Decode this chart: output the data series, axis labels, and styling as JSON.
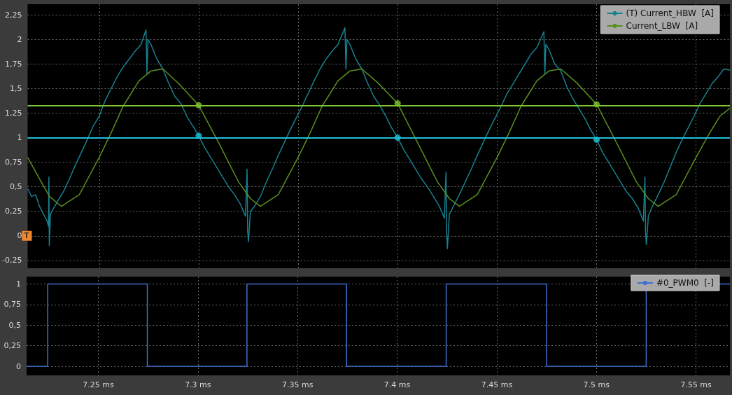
{
  "chart_data": [
    {
      "type": "line",
      "legend": "top right",
      "grid": true,
      "tick_labels": "y",
      "marker": "none",
      "annotations": [
        "T"
      ],
      "xlim": [
        7.214,
        7.567
      ],
      "ylim": [
        -0.33,
        2.36
      ],
      "xticks": [
        7.25,
        7.3,
        7.35,
        7.4,
        7.45,
        7.5,
        7.55
      ],
      "yticks": [
        {
          "value": -0.25,
          "label": "-0,25"
        },
        0,
        {
          "value": 0.25,
          "label": "0,25"
        },
        {
          "value": 0.5,
          "label": "0,5"
        },
        {
          "value": 0.75,
          "label": "0,75"
        },
        1,
        {
          "value": 1.25,
          "label": "1,25"
        },
        {
          "value": 1.5,
          "label": "1,5"
        },
        {
          "value": 1.75,
          "label": "1,75"
        },
        2,
        {
          "value": 2.25,
          "label": "2,25"
        }
      ],
      "ref_lines": [
        {
          "axis": "y",
          "value": 1.33,
          "color": "#7cc530"
        },
        {
          "axis": "y",
          "value": 1.0,
          "color": "#1fbfd5"
        }
      ],
      "series": [
        {
          "name": "(T) Current_HBW  [A]",
          "color": "#16808f",
          "x": [
            7.214,
            7.216,
            7.218,
            7.22,
            7.222,
            7.2238,
            7.2245,
            7.2247,
            7.2249,
            7.2255,
            7.227,
            7.229,
            7.232,
            7.235,
            7.238,
            7.241,
            7.244,
            7.247,
            7.25,
            7.253,
            7.256,
            7.259,
            7.262,
            7.265,
            7.268,
            7.271,
            7.2735,
            7.274,
            7.2745,
            7.276,
            7.279,
            7.282,
            7.285,
            7.288,
            7.291,
            7.294,
            7.297,
            7.3,
            7.303,
            7.306,
            7.309,
            7.312,
            7.315,
            7.318,
            7.321,
            7.3235,
            7.3243,
            7.3246,
            7.325,
            7.326,
            7.328,
            7.331,
            7.334,
            7.337,
            7.34,
            7.343,
            7.346,
            7.349,
            7.352,
            7.355,
            7.358,
            7.361,
            7.364,
            7.367,
            7.37,
            7.3735,
            7.374,
            7.3745,
            7.376,
            7.379,
            7.382,
            7.385,
            7.388,
            7.391,
            7.394,
            7.397,
            7.4,
            7.403,
            7.406,
            7.409,
            7.412,
            7.415,
            7.418,
            7.421,
            7.4235,
            7.4243,
            7.4246,
            7.425,
            7.426,
            7.428,
            7.431,
            7.434,
            7.437,
            7.44,
            7.443,
            7.446,
            7.449,
            7.452,
            7.455,
            7.458,
            7.461,
            7.464,
            7.467,
            7.47,
            7.4735,
            7.474,
            7.4745,
            7.476,
            7.479,
            7.482,
            7.485,
            7.488,
            7.491,
            7.494,
            7.497,
            7.5,
            7.503,
            7.506,
            7.509,
            7.512,
            7.515,
            7.518,
            7.521,
            7.5235,
            7.5243,
            7.5246,
            7.525,
            7.526,
            7.528,
            7.531,
            7.534,
            7.537,
            7.54,
            7.543,
            7.546,
            7.549,
            7.552,
            7.555,
            7.558,
            7.561,
            7.564,
            7.567
          ],
          "values": [
            0.48,
            0.4,
            0.42,
            0.3,
            0.22,
            0.15,
            0.1,
            0.6,
            -0.1,
            0.22,
            0.28,
            0.35,
            0.45,
            0.58,
            0.72,
            0.85,
            0.98,
            1.12,
            1.22,
            1.38,
            1.5,
            1.62,
            1.72,
            1.8,
            1.88,
            1.95,
            2.1,
            1.65,
            2.0,
            1.95,
            1.8,
            1.7,
            1.55,
            1.42,
            1.35,
            1.22,
            1.12,
            1.02,
            0.9,
            0.8,
            0.7,
            0.6,
            0.5,
            0.42,
            0.32,
            0.2,
            0.68,
            0.05,
            -0.06,
            0.25,
            0.3,
            0.4,
            0.55,
            0.68,
            0.82,
            0.95,
            1.08,
            1.2,
            1.32,
            1.45,
            1.58,
            1.7,
            1.8,
            1.88,
            1.95,
            2.12,
            1.7,
            2.0,
            1.95,
            1.8,
            1.7,
            1.55,
            1.42,
            1.33,
            1.22,
            1.1,
            1.0,
            0.88,
            0.78,
            0.68,
            0.58,
            0.5,
            0.4,
            0.3,
            0.18,
            0.65,
            0.05,
            -0.13,
            0.22,
            0.3,
            0.42,
            0.55,
            0.68,
            0.82,
            0.95,
            1.08,
            1.2,
            1.32,
            1.45,
            1.55,
            1.65,
            1.75,
            1.85,
            1.92,
            2.08,
            1.65,
            1.95,
            1.9,
            1.75,
            1.68,
            1.52,
            1.4,
            1.3,
            1.2,
            1.08,
            0.98,
            0.85,
            0.75,
            0.65,
            0.55,
            0.45,
            0.38,
            0.28,
            0.15,
            0.6,
            0.05,
            -0.09,
            0.2,
            0.3,
            0.42,
            0.55,
            0.7,
            0.85,
            0.98,
            1.1,
            1.22,
            1.35,
            1.45,
            1.55,
            1.62,
            1.7,
            1.69
          ]
        },
        {
          "name": "Current_LBW  [A]",
          "color": "#5a8f1e",
          "x": [
            7.214,
            7.22,
            7.225,
            7.231,
            7.24,
            7.25,
            7.256,
            7.262,
            7.27,
            7.276,
            7.282,
            7.29,
            7.3,
            7.31,
            7.32,
            7.326,
            7.331,
            7.34,
            7.35,
            7.356,
            7.362,
            7.37,
            7.376,
            7.382,
            7.39,
            7.4,
            7.41,
            7.42,
            7.426,
            7.431,
            7.44,
            7.45,
            7.456,
            7.462,
            7.47,
            7.476,
            7.482,
            7.49,
            7.5,
            7.51,
            7.52,
            7.526,
            7.531,
            7.54,
            7.55,
            7.556,
            7.562,
            7.567
          ],
          "values": [
            0.8,
            0.58,
            0.4,
            0.3,
            0.42,
            0.8,
            1.05,
            1.32,
            1.58,
            1.68,
            1.7,
            1.55,
            1.33,
            0.95,
            0.55,
            0.38,
            0.3,
            0.42,
            0.8,
            1.05,
            1.32,
            1.58,
            1.68,
            1.7,
            1.56,
            1.35,
            0.95,
            0.55,
            0.38,
            0.3,
            0.42,
            0.8,
            1.05,
            1.32,
            1.58,
            1.68,
            1.7,
            1.56,
            1.34,
            0.95,
            0.55,
            0.38,
            0.3,
            0.42,
            0.8,
            1.02,
            1.22,
            1.3
          ]
        },
        {
          "type": "scatter",
          "marker": "circle",
          "color": "#7cc530",
          "x": [
            7.3,
            7.4,
            7.5
          ],
          "values": [
            1.33,
            1.35,
            1.34
          ]
        },
        {
          "type": "scatter",
          "marker": "circle",
          "color": "#1fbfd5",
          "x": [
            7.3,
            7.4,
            7.5
          ],
          "values": [
            1.02,
            1.0,
            0.98
          ]
        }
      ]
    },
    {
      "type": "step",
      "legend": "top right",
      "grid": true,
      "marker": "none",
      "xlim": [
        7.214,
        7.567
      ],
      "ylim": [
        -0.11,
        1.09
      ],
      "xticks": [
        {
          "value": 7.25,
          "label": "7.25 ms"
        },
        {
          "value": 7.3,
          "label": "7.3 ms"
        },
        {
          "value": 7.35,
          "label": "7.35 ms"
        },
        {
          "value": 7.4,
          "label": "7.4 ms"
        },
        {
          "value": 7.45,
          "label": "7.45 ms"
        },
        {
          "value": 7.5,
          "label": "7.5 ms"
        },
        {
          "value": 7.55,
          "label": "7.55 ms"
        }
      ],
      "yticks": [
        0,
        {
          "value": 0.25,
          "label": "0,25"
        },
        {
          "value": 0.5,
          "label": "0,5"
        },
        {
          "value": 0.75,
          "label": "0,75"
        },
        1
      ],
      "series": [
        {
          "name": "#0_PWM0  [-]",
          "color": "#3f6fd0",
          "x": [
            7.214,
            7.2246,
            7.2746,
            7.3246,
            7.3746,
            7.4246,
            7.475,
            7.525,
            7.567
          ],
          "values": [
            0,
            1,
            0,
            1,
            0,
            1,
            0,
            1,
            1
          ]
        }
      ]
    }
  ]
}
